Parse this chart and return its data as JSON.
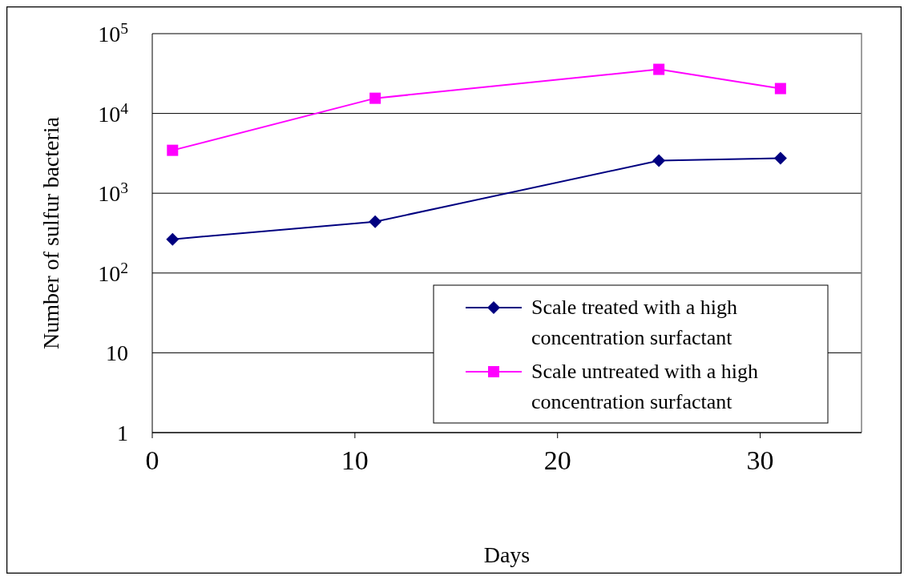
{
  "chart_data": {
    "type": "line",
    "xlabel": "Days",
    "ylabel": "Number of sulfur bacteria",
    "log": "y",
    "grid": "y",
    "legend": "bottom right",
    "xlim": [
      0,
      35
    ],
    "xticks": [
      0,
      10,
      20,
      30
    ],
    "ylim": [
      1,
      100000
    ],
    "yticks": [
      1,
      10,
      {
        "value": 100,
        "label": "10$^{2}$"
      },
      {
        "value": 1000,
        "label": "10$^{3}$"
      },
      {
        "value": 10000,
        "label": "10$^{4}$"
      },
      {
        "value": 100000,
        "label": "10$^{5}$"
      }
    ],
    "series": [
      {
        "name": "Scale treated with a high concentration surfactant",
        "color": "#000080",
        "marker": "diamond",
        "x": [
          1,
          11,
          25,
          31
        ],
        "values": [
          265,
          440,
          2560,
          2740
        ]
      },
      {
        "name": "Scale untreated with a high concentration surfactant",
        "color": "#ff00ff",
        "marker": "square",
        "x": [
          1,
          11,
          25,
          31
        ],
        "values": [
          3450,
          15500,
          35700,
          20500
        ]
      }
    ]
  }
}
